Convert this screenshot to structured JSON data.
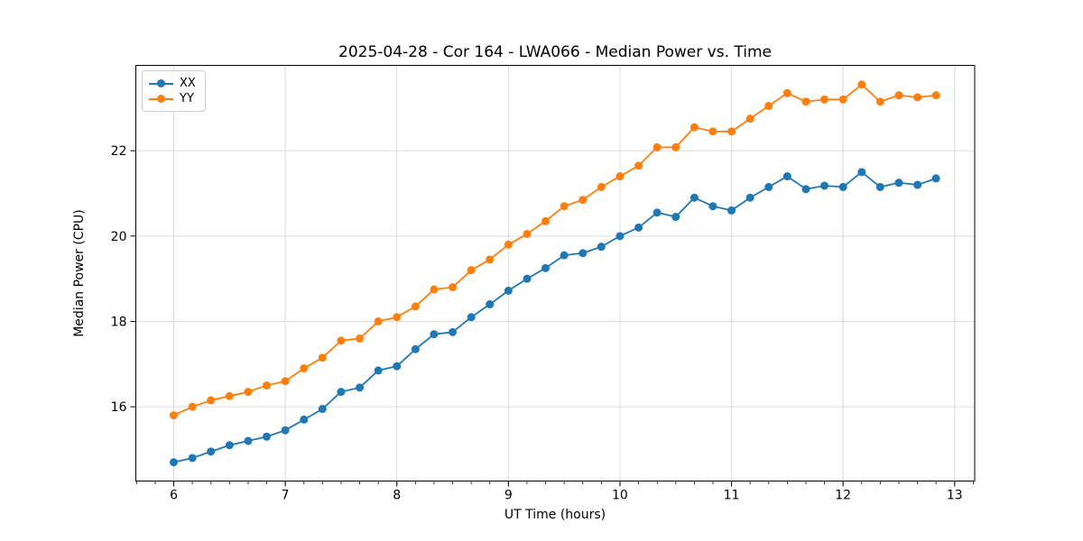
{
  "title": "2025-04-28 - Cor 164 - LWA066 - Median Power vs. Time",
  "colors": {
    "series_xx": "#1f77b4",
    "series_yy": "#ff7f0e",
    "grid": "#dcdcdc",
    "spine": "#000000",
    "legend_border": "#cccccc"
  },
  "legend": {
    "items": [
      {
        "label": "XX",
        "color": "#1f77b4"
      },
      {
        "label": "YY",
        "color": "#ff7f0e"
      }
    ]
  },
  "chart_data": {
    "type": "line",
    "title": "2025-04-28 - Cor 164 - LWA066 - Median Power vs. Time",
    "xlabel": "UT Time (hours)",
    "ylabel": "Median Power (CPU)",
    "xlim": [
      5.66,
      13.18
    ],
    "ylim": [
      14.26,
      24.0
    ],
    "x_ticks": [
      6,
      7,
      8,
      9,
      10,
      11,
      12,
      13
    ],
    "y_ticks": [
      16,
      18,
      20,
      22
    ],
    "x_minor_tick_step": 0.16667,
    "grid": true,
    "legend_position": "upper-left",
    "marker": "circle",
    "x": [
      6.0,
      6.167,
      6.333,
      6.5,
      6.667,
      6.833,
      7.0,
      7.167,
      7.333,
      7.5,
      7.667,
      7.833,
      8.0,
      8.167,
      8.333,
      8.5,
      8.667,
      8.833,
      9.0,
      9.167,
      9.333,
      9.5,
      9.667,
      9.833,
      10.0,
      10.167,
      10.333,
      10.5,
      10.667,
      10.833,
      11.0,
      11.167,
      11.333,
      11.5,
      11.667,
      11.833,
      12.0,
      12.167,
      12.333,
      12.5,
      12.667,
      12.833
    ],
    "series": [
      {
        "name": "XX",
        "color": "#1f77b4",
        "values": [
          14.7,
          14.8,
          14.95,
          15.1,
          15.2,
          15.3,
          15.45,
          15.7,
          15.95,
          16.35,
          16.45,
          16.85,
          16.95,
          17.35,
          17.7,
          17.75,
          18.1,
          18.4,
          18.72,
          19.0,
          19.25,
          19.55,
          19.6,
          19.75,
          20.0,
          20.2,
          20.55,
          20.45,
          20.9,
          20.7,
          20.6,
          20.9,
          21.15,
          21.4,
          21.1,
          21.18,
          21.15,
          21.5,
          21.15,
          21.25,
          21.2,
          21.35
        ]
      },
      {
        "name": "YY",
        "color": "#ff7f0e",
        "values": [
          15.8,
          16.0,
          16.15,
          16.25,
          16.35,
          16.5,
          16.6,
          16.9,
          17.15,
          17.55,
          17.6,
          18.0,
          18.1,
          18.35,
          18.75,
          18.8,
          19.2,
          19.45,
          19.8,
          20.05,
          20.35,
          20.7,
          20.85,
          21.15,
          21.4,
          21.65,
          22.08,
          22.08,
          22.55,
          22.45,
          22.45,
          22.75,
          23.05,
          23.35,
          23.15,
          23.2,
          23.2,
          23.55,
          23.15,
          23.3,
          23.25,
          23.3
        ]
      }
    ]
  }
}
